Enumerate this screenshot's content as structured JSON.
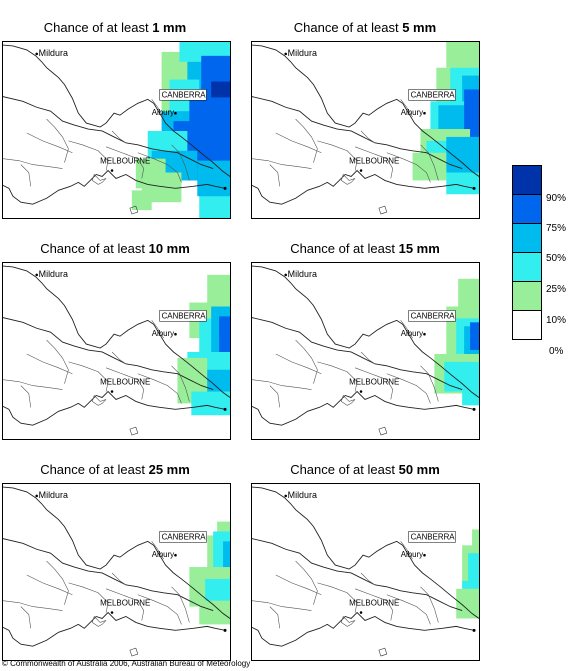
{
  "panels": [
    {
      "title_prefix": "Chance of at least",
      "amount": "1 mm"
    },
    {
      "title_prefix": "Chance of at least",
      "amount": "5 mm"
    },
    {
      "title_prefix": "Chance of at least",
      "amount": "10 mm"
    },
    {
      "title_prefix": "Chance of at least",
      "amount": "15 mm"
    },
    {
      "title_prefix": "Chance of at least",
      "amount": "25 mm"
    },
    {
      "title_prefix": "Chance of at least",
      "amount": "50 mm"
    }
  ],
  "places": {
    "mildura": "Mildura",
    "canberra": "CANBERRA",
    "albury": "Albury",
    "melbourne": "MELBOURNE"
  },
  "legend": {
    "labels": [
      "90%",
      "75%",
      "50%",
      "25%",
      "10%",
      "0%"
    ],
    "colors": [
      "#0033aa",
      "#0066ee",
      "#00bbee",
      "#33eeee",
      "#99ee99",
      "#ffffff"
    ]
  },
  "copyright": "© Commonwealth of Australia 2006, Australian Bureau of Meteorology"
}
